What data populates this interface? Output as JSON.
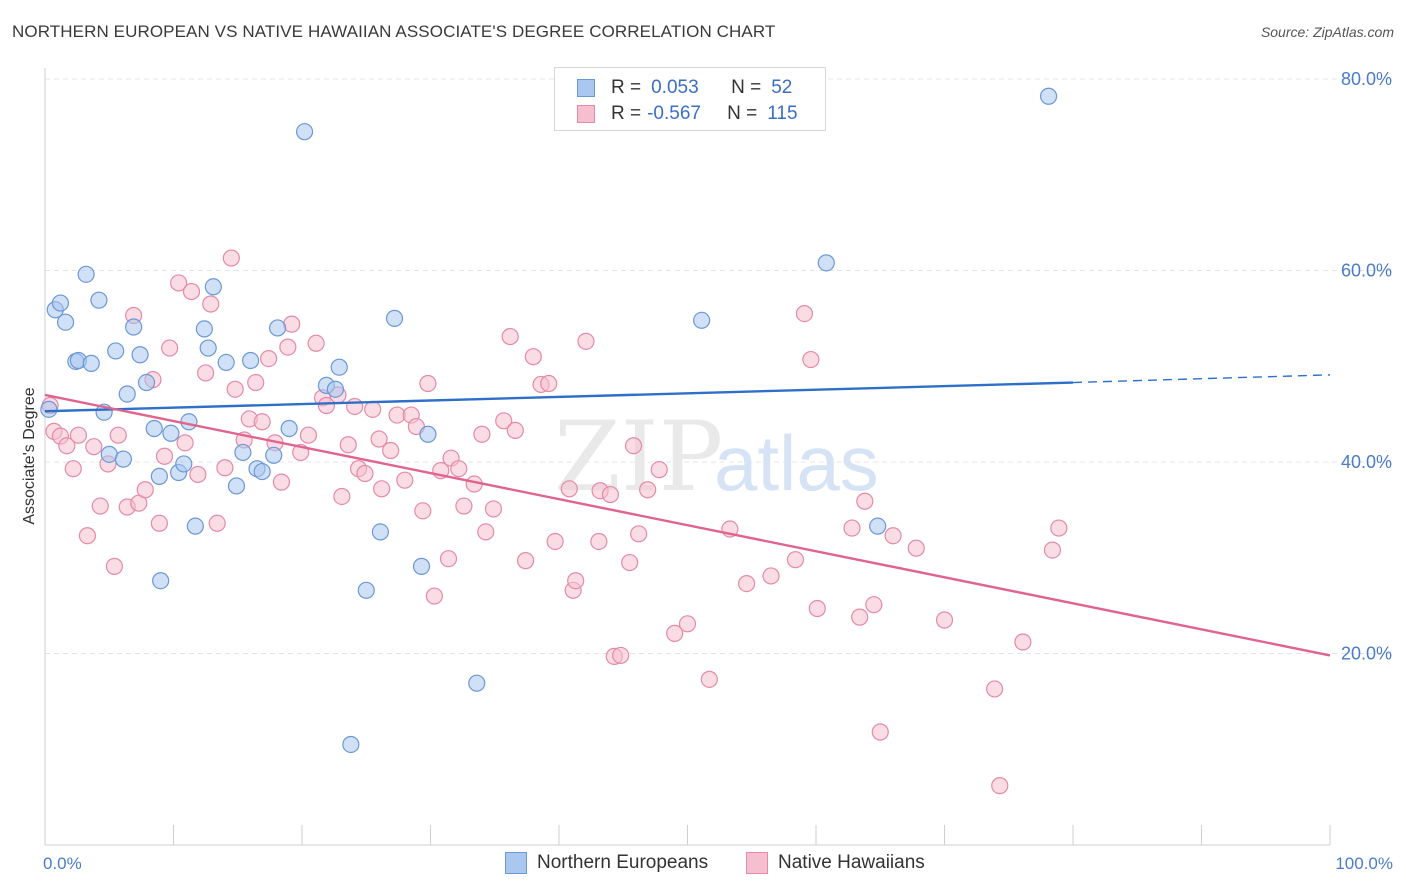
{
  "title": "NORTHERN EUROPEAN VS NATIVE HAWAIIAN ASSOCIATE'S DEGREE CORRELATION CHART",
  "source": "Source: ZipAtlas.com",
  "watermark": {
    "zip": "ZIP",
    "atlas": "atlas"
  },
  "legend": {
    "r_label": "R =",
    "n_label": "N =",
    "series1": {
      "r": "0.053",
      "n": "52"
    },
    "series2": {
      "r": "-0.567",
      "n": "115"
    }
  },
  "bottom_legend": {
    "series1": "Northern Europeans",
    "series2": "Native Hawaiians"
  },
  "colors": {
    "blue_fill": "#a9c7ef",
    "blue_stroke": "#6b98d6",
    "blue_line": "#2e6fc9",
    "pink_fill": "#f6bfd0",
    "pink_stroke": "#e58aa8",
    "pink_line": "#e0648e",
    "grid": "#e4e4e4",
    "tick_text": "#4a7cc9"
  },
  "chart_data": {
    "type": "scatter",
    "title": "NORTHERN EUROPEAN VS NATIVE HAWAIIAN ASSOCIATE'S DEGREE CORRELATION CHART",
    "xlabel": "",
    "ylabel": "Associate's Degree",
    "xlim": [
      0,
      100
    ],
    "ylim": [
      0,
      80
    ],
    "x_ticks_labeled": [
      "0.0%",
      "100.0%"
    ],
    "y_ticks": [
      20,
      40,
      60,
      80
    ],
    "y_tick_labels": [
      "20.0%",
      "40.0%",
      "60.0%",
      "80.0%"
    ],
    "grid": true,
    "legend_placement": "top-center",
    "series": [
      {
        "name": "Northern Europeans",
        "r": 0.053,
        "n": 52,
        "trend": {
          "x0": 0,
          "y0": 45.3,
          "x1": 80,
          "y1": 48.3,
          "dash_to": 100,
          "dash_y": 49.1
        },
        "points": [
          [
            0.3,
            45.5
          ],
          [
            0.8,
            55.9
          ],
          [
            1.2,
            56.6
          ],
          [
            1.6,
            54.6
          ],
          [
            2.4,
            50.5
          ],
          [
            2.6,
            50.6
          ],
          [
            3.2,
            59.6
          ],
          [
            3.6,
            50.3
          ],
          [
            4.2,
            56.9
          ],
          [
            4.6,
            45.2
          ],
          [
            5.0,
            40.8
          ],
          [
            5.5,
            51.6
          ],
          [
            6.1,
            40.3
          ],
          [
            6.4,
            47.1
          ],
          [
            6.9,
            54.1
          ],
          [
            7.4,
            51.2
          ],
          [
            7.9,
            48.3
          ],
          [
            8.5,
            43.5
          ],
          [
            8.9,
            38.5
          ],
          [
            9.0,
            27.6
          ],
          [
            9.8,
            43.0
          ],
          [
            10.4,
            38.9
          ],
          [
            10.8,
            39.8
          ],
          [
            11.2,
            44.2
          ],
          [
            11.7,
            33.3
          ],
          [
            12.4,
            53.9
          ],
          [
            12.7,
            51.9
          ],
          [
            13.1,
            58.3
          ],
          [
            14.1,
            50.4
          ],
          [
            14.9,
            37.5
          ],
          [
            15.4,
            41.0
          ],
          [
            16.0,
            50.6
          ],
          [
            16.5,
            39.3
          ],
          [
            16.9,
            39.0
          ],
          [
            17.8,
            40.7
          ],
          [
            18.1,
            54.0
          ],
          [
            19.0,
            43.5
          ],
          [
            20.2,
            74.5
          ],
          [
            21.9,
            48.0
          ],
          [
            22.6,
            47.6
          ],
          [
            22.9,
            49.9
          ],
          [
            23.8,
            10.5
          ],
          [
            25.0,
            26.6
          ],
          [
            26.1,
            32.7
          ],
          [
            27.2,
            55.0
          ],
          [
            29.3,
            29.1
          ],
          [
            29.8,
            42.9
          ],
          [
            33.6,
            16.9
          ],
          [
            51.1,
            54.8
          ],
          [
            60.8,
            60.8
          ],
          [
            64.8,
            33.3
          ],
          [
            78.1,
            78.2
          ]
        ]
      },
      {
        "name": "Native Hawaiians",
        "r": -0.567,
        "n": 115,
        "trend": {
          "x0": 0,
          "y0": 47.0,
          "x1": 100,
          "y1": 19.8
        },
        "points": [
          [
            0.4,
            45.9
          ],
          [
            0.7,
            43.2
          ],
          [
            1.2,
            42.7
          ],
          [
            1.7,
            41.7
          ],
          [
            2.2,
            39.3
          ],
          [
            2.6,
            42.8
          ],
          [
            3.3,
            32.3
          ],
          [
            3.8,
            41.6
          ],
          [
            4.3,
            35.4
          ],
          [
            4.9,
            39.8
          ],
          [
            5.4,
            29.1
          ],
          [
            5.7,
            42.8
          ],
          [
            6.4,
            35.3
          ],
          [
            6.9,
            55.3
          ],
          [
            7.3,
            35.7
          ],
          [
            7.8,
            37.1
          ],
          [
            8.4,
            48.6
          ],
          [
            8.9,
            33.6
          ],
          [
            9.3,
            40.6
          ],
          [
            9.7,
            51.9
          ],
          [
            10.4,
            58.7
          ],
          [
            10.9,
            42.0
          ],
          [
            11.4,
            57.8
          ],
          [
            11.9,
            38.7
          ],
          [
            12.5,
            49.3
          ],
          [
            12.9,
            56.5
          ],
          [
            13.4,
            33.6
          ],
          [
            14.0,
            39.4
          ],
          [
            14.5,
            61.3
          ],
          [
            14.8,
            47.6
          ],
          [
            15.5,
            42.3
          ],
          [
            15.9,
            44.5
          ],
          [
            16.4,
            48.3
          ],
          [
            16.9,
            44.2
          ],
          [
            17.4,
            50.8
          ],
          [
            17.9,
            42.0
          ],
          [
            18.4,
            37.9
          ],
          [
            18.9,
            52.0
          ],
          [
            19.2,
            54.4
          ],
          [
            19.9,
            41.0
          ],
          [
            20.5,
            42.8
          ],
          [
            21.1,
            52.4
          ],
          [
            21.6,
            46.7
          ],
          [
            21.9,
            45.9
          ],
          [
            22.8,
            47.0
          ],
          [
            23.1,
            36.4
          ],
          [
            23.6,
            41.8
          ],
          [
            24.1,
            45.8
          ],
          [
            24.4,
            39.3
          ],
          [
            24.9,
            38.8
          ],
          [
            25.5,
            45.5
          ],
          [
            26.0,
            42.4
          ],
          [
            26.2,
            37.2
          ],
          [
            26.9,
            41.2
          ],
          [
            27.4,
            44.9
          ],
          [
            28.0,
            38.1
          ],
          [
            28.5,
            44.9
          ],
          [
            28.9,
            43.7
          ],
          [
            29.4,
            34.9
          ],
          [
            29.8,
            48.2
          ],
          [
            30.3,
            26.0
          ],
          [
            30.8,
            39.1
          ],
          [
            31.4,
            29.9
          ],
          [
            31.6,
            40.4
          ],
          [
            32.2,
            39.3
          ],
          [
            32.6,
            35.4
          ],
          [
            33.4,
            37.7
          ],
          [
            34.0,
            42.9
          ],
          [
            34.3,
            32.7
          ],
          [
            34.9,
            35.1
          ],
          [
            35.7,
            44.3
          ],
          [
            36.2,
            53.1
          ],
          [
            36.6,
            43.3
          ],
          [
            37.4,
            29.7
          ],
          [
            38.0,
            51.0
          ],
          [
            38.6,
            48.1
          ],
          [
            39.2,
            48.2
          ],
          [
            39.7,
            31.7
          ],
          [
            40.8,
            37.2
          ],
          [
            41.1,
            26.6
          ],
          [
            41.3,
            27.6
          ],
          [
            42.1,
            52.6
          ],
          [
            43.1,
            31.7
          ],
          [
            43.2,
            37.0
          ],
          [
            44.0,
            36.6
          ],
          [
            44.3,
            19.7
          ],
          [
            44.8,
            19.8
          ],
          [
            45.5,
            29.5
          ],
          [
            45.8,
            41.7
          ],
          [
            46.2,
            32.5
          ],
          [
            46.9,
            37.1
          ],
          [
            47.8,
            39.2
          ],
          [
            49.0,
            22.1
          ],
          [
            50.0,
            23.1
          ],
          [
            51.7,
            17.3
          ],
          [
            53.3,
            33.0
          ],
          [
            54.6,
            27.3
          ],
          [
            56.5,
            28.1
          ],
          [
            58.4,
            29.8
          ],
          [
            59.1,
            55.5
          ],
          [
            59.6,
            50.7
          ],
          [
            60.1,
            24.7
          ],
          [
            62.8,
            33.1
          ],
          [
            63.4,
            23.8
          ],
          [
            63.8,
            35.9
          ],
          [
            64.5,
            25.1
          ],
          [
            65.0,
            11.8
          ],
          [
            66.0,
            32.3
          ],
          [
            67.8,
            31.0
          ],
          [
            70.0,
            23.5
          ],
          [
            73.9,
            16.3
          ],
          [
            74.3,
            6.2
          ],
          [
            76.1,
            21.2
          ],
          [
            78.4,
            30.8
          ],
          [
            78.9,
            33.1
          ]
        ]
      }
    ]
  }
}
